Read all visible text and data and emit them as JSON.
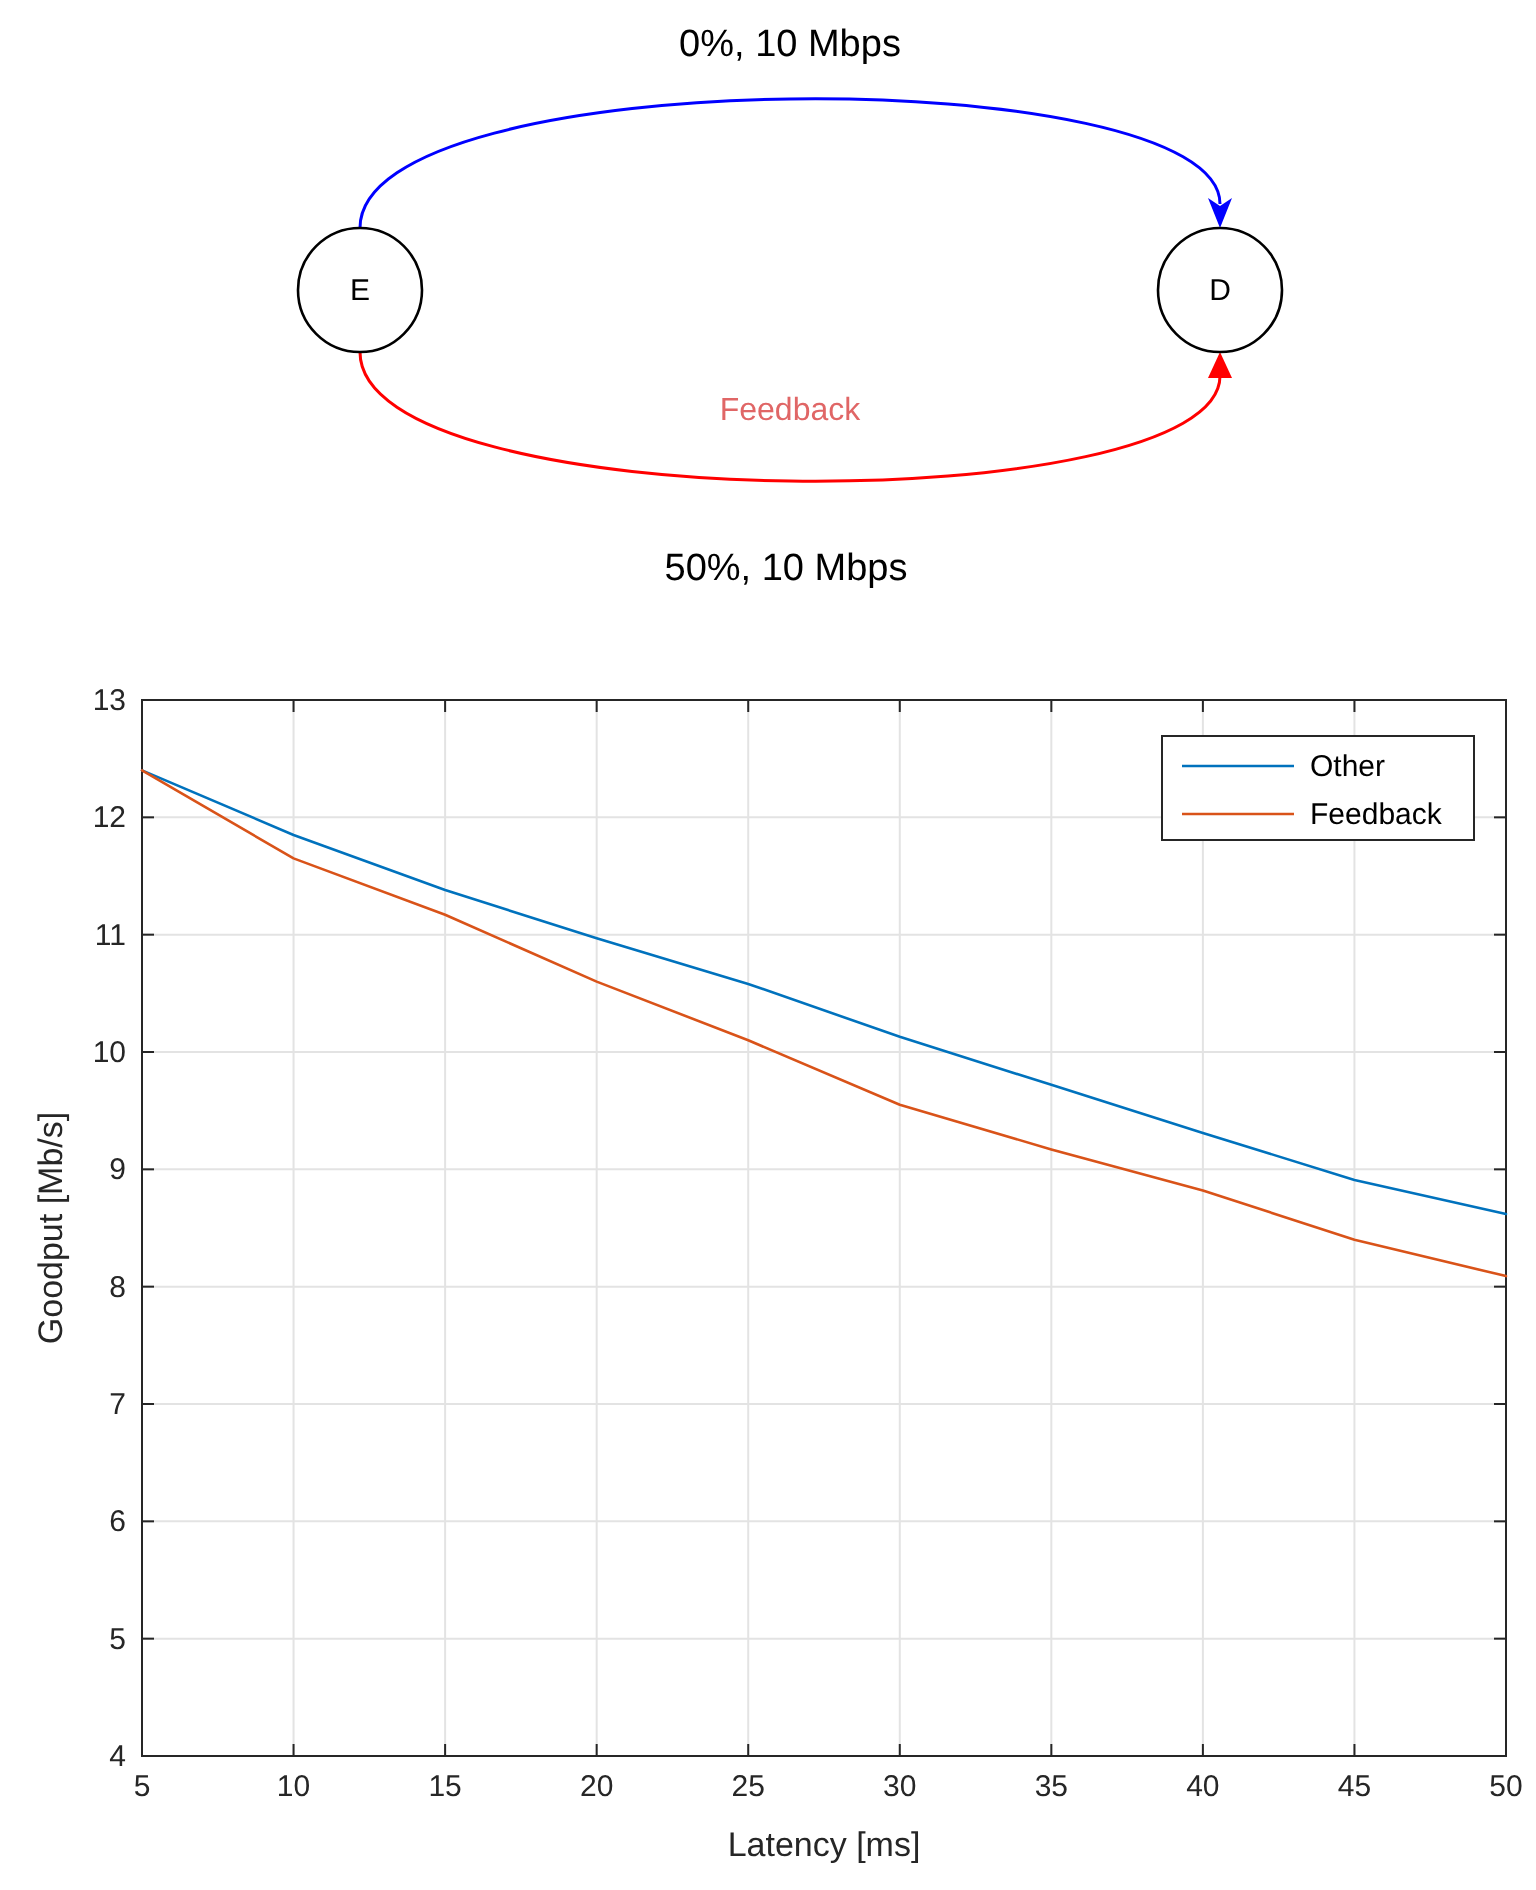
{
  "chart_data": {
    "type": "line",
    "xlabel": "Latency [ms]",
    "ylabel": "Goodput [Mb/s]",
    "annotations": [
      "0%, 10 Mbps",
      "E",
      "D",
      "Feedback",
      "50%, 10 Mbps"
    ],
    "x": [
      5,
      10,
      15,
      20,
      25,
      30,
      35,
      40,
      45,
      50
    ],
    "series": [
      {
        "name": "Other",
        "color": "#0072bd",
        "values": [
          12.4,
          11.85,
          11.38,
          10.97,
          10.58,
          10.13,
          9.72,
          9.31,
          8.91,
          8.62
        ]
      },
      {
        "name": "Feedback",
        "color": "#d95319",
        "values": [
          12.4,
          11.65,
          11.17,
          10.6,
          10.1,
          9.55,
          9.17,
          8.82,
          8.4,
          8.09
        ]
      }
    ],
    "xlim": [
      5,
      50
    ],
    "xticks": [
      5,
      10,
      15,
      20,
      25,
      30,
      35,
      40,
      45,
      50
    ],
    "ylim": [
      4,
      13
    ],
    "yticks": [
      4,
      5,
      6,
      7,
      8,
      9,
      10,
      11,
      12,
      13
    ],
    "grid": true,
    "legend": "top right",
    "line_style": "solid",
    "marker": "none"
  }
}
